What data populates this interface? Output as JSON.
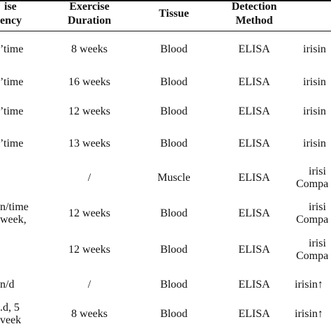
{
  "header": {
    "col1": [
      "ise",
      "ency"
    ],
    "col2": [
      "Exercise",
      "Duration"
    ],
    "col3": [
      "Tissue"
    ],
    "col4": [
      "Detection",
      "Method"
    ]
  },
  "rows": [
    {
      "freq": [
        "’time"
      ],
      "duration": "8 weeks",
      "tissue": "Blood",
      "method": "ELISA",
      "result": [
        "irisin"
      ]
    },
    {
      "freq": [
        "’time"
      ],
      "duration": "16 weeks",
      "tissue": "Blood",
      "method": "ELISA",
      "result": [
        "irisin"
      ]
    },
    {
      "freq": [
        "’time"
      ],
      "duration": "12 weeks",
      "tissue": "Blood",
      "method": "ELISA",
      "result": [
        "irisin"
      ]
    },
    {
      "freq": [
        "’time"
      ],
      "duration": "13 weeks",
      "tissue": "Blood",
      "method": "ELISA",
      "result": [
        "irisin"
      ]
    },
    {
      "freq": [
        ""
      ],
      "duration": "/",
      "tissue": "Muscle",
      "method": "ELISA",
      "result": [
        "irisi",
        "Compa"
      ]
    },
    {
      "freq": [
        "n/time",
        "week,"
      ],
      "duration": "12 weeks",
      "tissue": "Blood",
      "method": "ELISA",
      "result": [
        "irisi",
        "Compa"
      ]
    },
    {
      "freq": [
        ""
      ],
      "duration": "12 weeks",
      "tissue": "Blood",
      "method": "ELISA",
      "result": [
        "irisi",
        "Compa"
      ]
    },
    {
      "freq": [
        "n/d"
      ],
      "duration": "/",
      "tissue": "Blood",
      "method": "ELISA",
      "result": [
        "irisin↑"
      ]
    },
    {
      "freq": [
        ".d, 5",
        "veek"
      ],
      "duration": "8 weeks",
      "tissue": "Blood",
      "method": "ELISA",
      "result": [
        "irisin↑"
      ]
    }
  ]
}
